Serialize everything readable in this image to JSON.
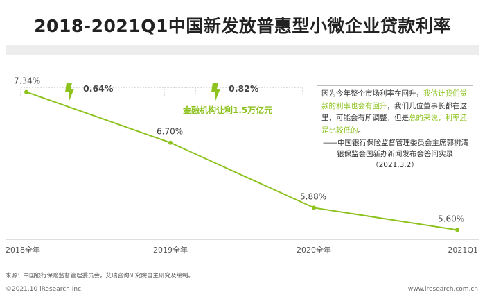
{
  "title": "2018-2021Q1中国新发放普惠型小微企业贷款利率",
  "annotations": {
    "delta_1": "0.64%",
    "delta_2": "0.82%",
    "subsidy": "金融机构让利1.5万亿元"
  },
  "quote": {
    "part1": "因为今年整个市场利率在回升，",
    "part2": "我估计我们贷款的利率也会有回升",
    "part3": "，我们几位董事长都在这里，可能会有所调整，但是",
    "part4": "总的来说，利率还是比较低的",
    "part5": "。",
    "attribution_1": "——中国银行保险监督管理委员会主席郭树清",
    "attribution_2": "银保监会国新办新闻发布会答问实录（2021.3.2）"
  },
  "source": "来源：中国银行保险监督管理委员会，艾瑞咨询研究院自主研究及绘制。",
  "copyright": "©2021.10 iResearch Inc.",
  "site": "www.iresearch.com.cn",
  "colors": {
    "line": "#8dc21f",
    "arrow": "#8dc21f",
    "highlight": "#8dc21f"
  },
  "chart_data": {
    "type": "line",
    "title": "2018-2021Q1中国新发放普惠型小微企业贷款利率",
    "categories": [
      "2018全年",
      "2019全年",
      "2020全年",
      "2021Q1"
    ],
    "series": [
      {
        "values": [
          7.34,
          6.7,
          5.88,
          5.6
        ],
        "labels": [
          "7.34%",
          "6.70%",
          "5.88%",
          "5.60%"
        ]
      }
    ],
    "ylim": [
      5.0,
      7.8
    ],
    "grid": false,
    "legend": "none"
  }
}
